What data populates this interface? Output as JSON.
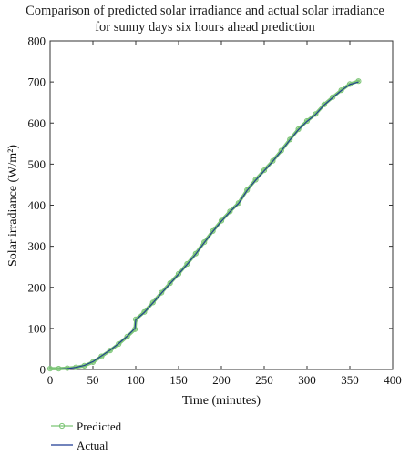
{
  "chart_data": {
    "type": "line",
    "title": "Comparison of predicted solar irradiance and actual solar irradiance",
    "subtitle": "for sunny days six hours ahead prediction",
    "xlabel": "Time (minutes)",
    "ylabel": "Solar irradiance (W/m²)",
    "xlim": [
      0,
      400
    ],
    "ylim": [
      0,
      800
    ],
    "xticks": [
      "0",
      "50",
      "100",
      "150",
      "200",
      "250",
      "300",
      "350",
      "400"
    ],
    "yticks": [
      "0",
      "100",
      "200",
      "300",
      "400",
      "500",
      "600",
      "700",
      "800"
    ],
    "grid": false,
    "legend_position": "bottom-left",
    "series": [
      {
        "name": "Predicted",
        "color": "#7cc576",
        "marker": "circle",
        "x": [
          0,
          10,
          20,
          30,
          40,
          50,
          60,
          70,
          80,
          90,
          99,
          100,
          110,
          120,
          130,
          140,
          150,
          160,
          170,
          180,
          190,
          200,
          210,
          220,
          230,
          240,
          250,
          260,
          270,
          280,
          290,
          300,
          310,
          320,
          330,
          340,
          350,
          360
        ],
        "y": [
          2,
          2,
          3,
          5,
          9,
          18,
          32,
          46,
          62,
          80,
          98,
          122,
          140,
          163,
          187,
          210,
          233,
          257,
          282,
          310,
          337,
          362,
          385,
          405,
          437,
          462,
          485,
          508,
          533,
          560,
          585,
          605,
          622,
          645,
          663,
          680,
          695,
          702
        ]
      },
      {
        "name": "Actual",
        "color": "#1f3a93",
        "x": [
          0,
          10,
          20,
          30,
          40,
          50,
          60,
          70,
          80,
          90,
          99,
          100,
          110,
          120,
          130,
          140,
          150,
          160,
          170,
          180,
          190,
          200,
          210,
          220,
          230,
          240,
          250,
          260,
          270,
          280,
          290,
          300,
          310,
          320,
          330,
          340,
          350,
          360
        ],
        "y": [
          1,
          1,
          2,
          5,
          10,
          19,
          33,
          47,
          63,
          81,
          100,
          121,
          139,
          162,
          186,
          209,
          232,
          256,
          281,
          309,
          336,
          361,
          384,
          404,
          436,
          461,
          484,
          507,
          532,
          559,
          584,
          604,
          621,
          644,
          662,
          679,
          694,
          700
        ]
      }
    ]
  }
}
